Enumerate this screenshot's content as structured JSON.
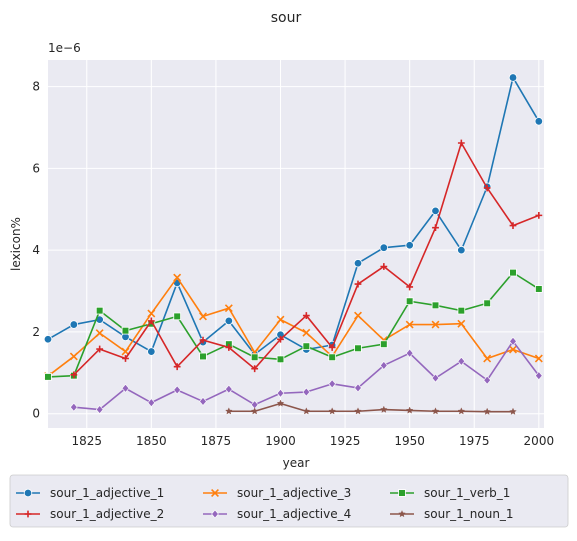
{
  "chart_data": {
    "type": "line",
    "title": "sour",
    "xlabel": "year",
    "ylabel": "lexicon%",
    "y_offset_label": "1e−6",
    "xlim": [
      1810,
      2002
    ],
    "ylim": [
      -0.35,
      8.65
    ],
    "x_ticks": [
      1825,
      1850,
      1875,
      1900,
      1925,
      1950,
      1975,
      2000
    ],
    "y_ticks": [
      0,
      2,
      4,
      6,
      8
    ],
    "grid": true,
    "legend_position": "bottom",
    "series": [
      {
        "name": "sour_1_adjective_1",
        "color": "#1f77b4",
        "marker": "circle",
        "x": [
          1810,
          1820,
          1830,
          1840,
          1850,
          1860,
          1870,
          1880,
          1890,
          1900,
          1910,
          1920,
          1930,
          1940,
          1950,
          1960,
          1970,
          1980,
          1990,
          2000
        ],
        "y": [
          1.82,
          2.18,
          2.3,
          1.88,
          1.52,
          3.2,
          1.75,
          2.27,
          1.45,
          1.93,
          1.57,
          1.68,
          3.68,
          4.06,
          4.12,
          4.96,
          4.0,
          5.55,
          8.22,
          7.15
        ]
      },
      {
        "name": "sour_1_adjective_3",
        "color": "#ff7f0e",
        "marker": "x",
        "x": [
          1810,
          1820,
          1830,
          1840,
          1850,
          1860,
          1870,
          1880,
          1890,
          1900,
          1910,
          1920,
          1930,
          1940,
          1950,
          1960,
          1970,
          1980,
          1990,
          2000
        ],
        "y": [
          0.92,
          1.4,
          1.97,
          1.52,
          2.45,
          3.33,
          2.38,
          2.58,
          1.5,
          2.3,
          1.98,
          1.4,
          2.4,
          1.8,
          2.18,
          2.18,
          2.2,
          1.35,
          1.57,
          1.35
        ]
      },
      {
        "name": "sour_1_verb_1",
        "color": "#2ca02c",
        "marker": "square",
        "x": [
          1810,
          1820,
          1830,
          1840,
          1850,
          1860,
          1870,
          1880,
          1890,
          1900,
          1910,
          1920,
          1930,
          1940,
          1950,
          1960,
          1970,
          1980,
          1990,
          2000
        ],
        "y": [
          0.9,
          0.93,
          2.52,
          2.03,
          2.2,
          2.38,
          1.4,
          1.7,
          1.38,
          1.33,
          1.65,
          1.38,
          1.6,
          1.7,
          2.75,
          2.65,
          2.52,
          2.7,
          3.45,
          3.05
        ]
      },
      {
        "name": "sour_1_adjective_2",
        "color": "#d62728",
        "marker": "plus",
        "x": [
          1820,
          1830,
          1840,
          1850,
          1860,
          1870,
          1880,
          1890,
          1900,
          1910,
          1920,
          1930,
          1940,
          1950,
          1960,
          1970,
          1980,
          1990,
          2000
        ],
        "y": [
          0.95,
          1.58,
          1.35,
          2.27,
          1.15,
          1.8,
          1.62,
          1.1,
          1.82,
          2.4,
          1.62,
          3.17,
          3.6,
          3.1,
          4.55,
          6.62,
          5.52,
          4.6,
          4.85
        ]
      },
      {
        "name": "sour_1_adjective_4",
        "color": "#9467bd",
        "marker": "diamond",
        "x": [
          1820,
          1830,
          1840,
          1850,
          1860,
          1870,
          1880,
          1890,
          1900,
          1910,
          1920,
          1930,
          1940,
          1950,
          1960,
          1970,
          1980,
          1990,
          2000
        ],
        "y": [
          0.16,
          0.1,
          0.62,
          0.27,
          0.58,
          0.3,
          0.6,
          0.22,
          0.5,
          0.53,
          0.73,
          0.63,
          1.18,
          1.48,
          0.87,
          1.28,
          0.82,
          1.77,
          0.93
        ]
      },
      {
        "name": "sour_1_noun_1",
        "color": "#8c564b",
        "marker": "star",
        "x": [
          1880,
          1890,
          1900,
          1910,
          1920,
          1930,
          1940,
          1950,
          1960,
          1970,
          1980,
          1990
        ],
        "y": [
          0.06,
          0.06,
          0.25,
          0.06,
          0.06,
          0.06,
          0.1,
          0.08,
          0.06,
          0.06,
          0.05,
          0.05
        ]
      }
    ]
  }
}
